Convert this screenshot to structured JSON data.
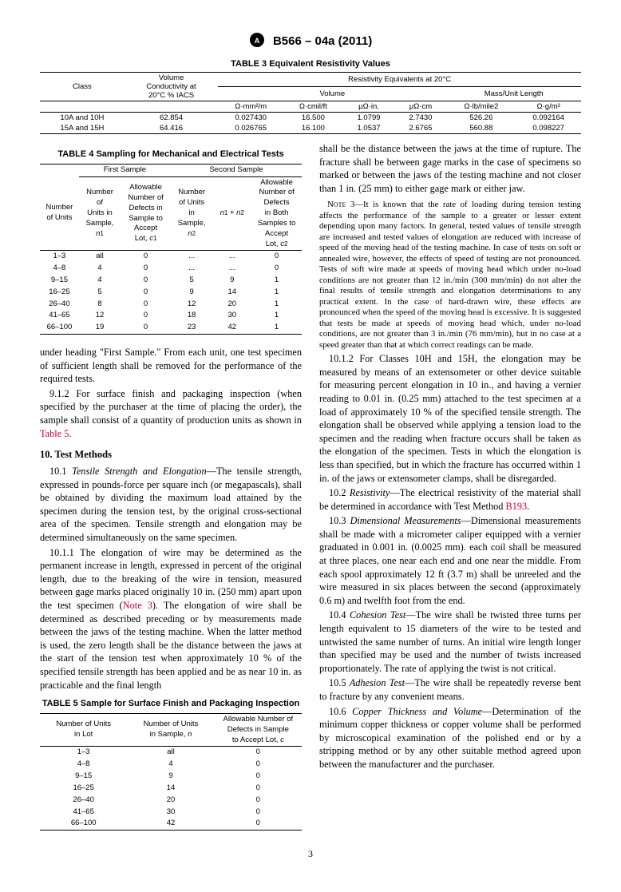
{
  "header": {
    "designation": "B566 – 04a (2011)"
  },
  "table3": {
    "title": "TABLE 3 Equivalent Resistivity Values",
    "group_vol": "Volume\nConductivity at\n20°C % IACS",
    "group_res": "Resistivity Equivalents at 20°C",
    "sub_vol": "Volume",
    "sub_mass": "Mass/Unit Length",
    "col_class": "Class",
    "cols": [
      "Ω·mm²/m",
      "Ω·cmil/ft",
      "μΩ·in.",
      "μΩ·cm",
      "Ω·lb/mile2",
      "Ω·g/m²"
    ],
    "rows": [
      [
        "10A and 10H",
        "62.854",
        "0.027430",
        "16.500",
        "1.0799",
        "2.7430",
        "526.26",
        "0.092164"
      ],
      [
        "15A and 15H",
        "64.416",
        "0.026765",
        "16.100",
        "1.0537",
        "2.6765",
        "560.88",
        "0.098227"
      ]
    ]
  },
  "table4": {
    "title": "TABLE 4 Sampling for Mechanical and Electrical Tests",
    "h_first": "First Sample",
    "h_second": "Second Sample",
    "c_lot": "Number of Units",
    "c_n1": "Number of Units in Sample, n₁",
    "c_c1": "Allowable Number of Defects in Sample to Accept Lot, c₁",
    "c_n2": "Number of Units in Sample, n₂",
    "c_sum": "n₁ + n₂",
    "c_c2": "Allowable Number of Defects in Both Samples to Accept Lot, c₂",
    "rows": [
      [
        "1–3",
        "all",
        "0",
        "...",
        "...",
        "0"
      ],
      [
        "4–8",
        "4",
        "0",
        "...",
        "...",
        "0"
      ],
      [
        "9–15",
        "4",
        "0",
        "5",
        "9",
        "1"
      ],
      [
        "16–25",
        "5",
        "0",
        "9",
        "14",
        "1"
      ],
      [
        "26–40",
        "8",
        "0",
        "12",
        "20",
        "1"
      ],
      [
        "41–65",
        "12",
        "0",
        "18",
        "30",
        "1"
      ],
      [
        "66–100",
        "19",
        "0",
        "23",
        "42",
        "1"
      ]
    ]
  },
  "table5": {
    "title": "TABLE 5 Sample for Surface Finish and Packaging Inspection",
    "c1": "Number of Units in Lot",
    "c2": "Number of Units in Sample, n",
    "c3": "Allowable Number of Defects in Sample to Accept Lot, c",
    "rows": [
      [
        "1–3",
        "all",
        "0"
      ],
      [
        "4–8",
        "4",
        "0"
      ],
      [
        "9–15",
        "9",
        "0"
      ],
      [
        "16–25",
        "14",
        "0"
      ],
      [
        "26–40",
        "20",
        "0"
      ],
      [
        "41–65",
        "30",
        "0"
      ],
      [
        "66–100",
        "42",
        "0"
      ]
    ]
  },
  "body": {
    "p0": "under heading \"First Sample.\" From each unit, one test specimen of sufficient length shall be removed for the performance of the required tests.",
    "p1a": "9.1.2 For surface finish and packaging inspection (when specified by the purchaser at the time of placing the order), the sample shall consist of a quantity of production units as shown in ",
    "p1b": "Table 5",
    "p1c": ".",
    "h10": "10.  Test Methods",
    "p2a": "10.1 ",
    "p2b": "Tensile Strength and Elongation",
    "p2c": "—The tensile strength, expressed in pounds-force per square inch (or megapascals), shall be obtained by dividing the maximum load attained by the specimen during the tension test, by the original cross-sectional area of the specimen. Tensile strength and elongation may be determined simultaneously on the same specimen.",
    "p3a": "10.1.1 The elongation of wire may be determined as the permanent increase in length, expressed in percent of the original length, due to the breaking of the wire in tension, measured between gage marks placed originally 10 in. (250 mm) apart upon the test specimen (",
    "p3b": "Note 3",
    "p3c": "). The elongation of wire shall be determined as described preceding or by measurements made between the jaws of the testing machine. When the latter method is used, the zero length shall be the distance between the jaws at the start of the tension test when approximately 10 % of the specified tensile strength has been applied and be as near 10 in. as practicable and the final length",
    "p4": "shall be the distance between the jaws at the time of rupture. The fracture shall be between gage marks in the case of specimens so marked or between the jaws of the testing machine and not closer than 1 in. (25 mm) to either gage mark or either jaw.",
    "note3a": "Note 3—",
    "note3b": "It is known that the rate of loading during tension testing affects the performance of the sample to a greater or lesser extent depending upon many factors. In general, tested values of tensile strength are increased and tested values of elongation are reduced with increase of speed of the moving head of the testing machine. In case of tests on soft or annealed wire, however, the effects of speed of testing are not pronounced. Tests of soft wire made at speeds of moving head which under no-load conditions are not greater than 12 in./min (300 mm/min) do not alter the final results of tensile strength and elongation determinations to any practical extent. In the case of hard-drawn wire, these effects are pronounced when the speed of the moving head is excessive. It is suggested that tests be made at speeds of moving head which, under no-load conditions, are not greater than 3 in./min (76 mm/min), but in no case at a speed greater than that at which correct readings can be made.",
    "p5": "10.1.2 For Classes 10H and 15H, the elongation may be measured by means of an extensometer or other device suitable for measuring percent elongation in 10 in., and having a vernier reading to 0.01 in. (0.25 mm) attached to the test specimen at a load of approximately 10 % of the specified tensile strength. The elongation shall be observed while applying a tension load to the specimen and the reading when fracture occurs shall be taken as the elongation of the specimen. Tests in which the elongation is less than specified, but in which the fracture has occurred within 1 in. of the jaws or extensometer clamps, shall be disregarded.",
    "p6a": "10.2 ",
    "p6b": "Resistivity",
    "p6c": "—The electrical resistivity of the material shall be determined in accordance with Test Method ",
    "p6d": "B193",
    "p6e": ".",
    "p7a": "10.3 ",
    "p7b": "Dimensional Measurements",
    "p7c": "—Dimensional measurements shall be made with a micrometer caliper equipped with a vernier graduated in 0.001 in. (0.0025 mm). each coil shall be measured at three places, one near each end and one near the middle. From each spool approximately 12 ft (3.7 m) shall be unreeled and the wire measured in six places between the second (approximately 0.6 m) and twelfth foot from the end.",
    "p8a": "10.4 ",
    "p8b": "Cohesion Test",
    "p8c": "—The wire shall be twisted three turns per length equivalent to 15 diameters of the wire to be tested and untwisted the same number of turns. An initial wire length longer than specified may be used and the number of twists increased proportionately. The rate of applying the twist is not critical.",
    "p9a": "10.5 ",
    "p9b": "Adhesion Test",
    "p9c": "—The wire shall be repeatedly reverse bent to fracture by any convenient means.",
    "p10a": "10.6 ",
    "p10b": "Copper Thickness and Volume",
    "p10c": "—Determination of the minimum copper thickness or copper volume shall be performed by microscopical examination of the polished end or by a stripping method or by any other suitable method agreed upon between the manufacturer and the purchaser."
  },
  "page": "3"
}
